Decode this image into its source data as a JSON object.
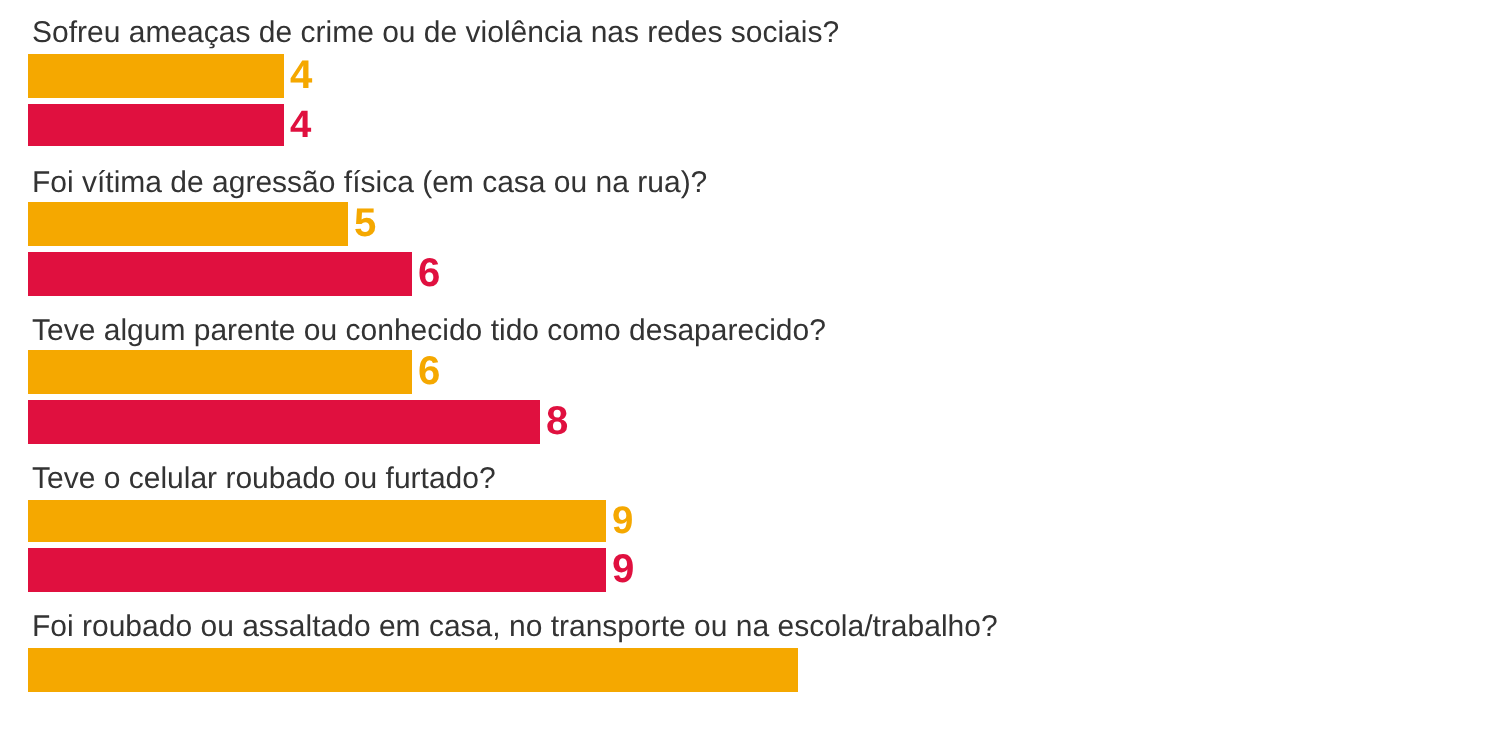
{
  "chart_data": {
    "type": "bar",
    "orientation": "horizontal",
    "categories": [
      "Sofreu ameaças de crime ou de violência nas redes sociais?",
      "Foi vítima de agressão física (em casa ou na rua)?",
      "Teve algum parente ou conhecido tido como desaparecido?",
      "Teve o celular roubado ou furtado?",
      "Foi roubado ou assaltado em casa, no transporte ou na escola/trabalho?"
    ],
    "series": [
      {
        "color": "#f5a800",
        "values": [
          4,
          5,
          6,
          9,
          12
        ],
        "value_labels": [
          "4",
          "5",
          "6",
          "9",
          null
        ]
      },
      {
        "color": "#e0103f",
        "values": [
          4,
          6,
          8,
          9,
          null
        ],
        "value_labels": [
          "4",
          "6",
          "8",
          "9",
          null
        ]
      }
    ],
    "tick_labels": false
  }
}
